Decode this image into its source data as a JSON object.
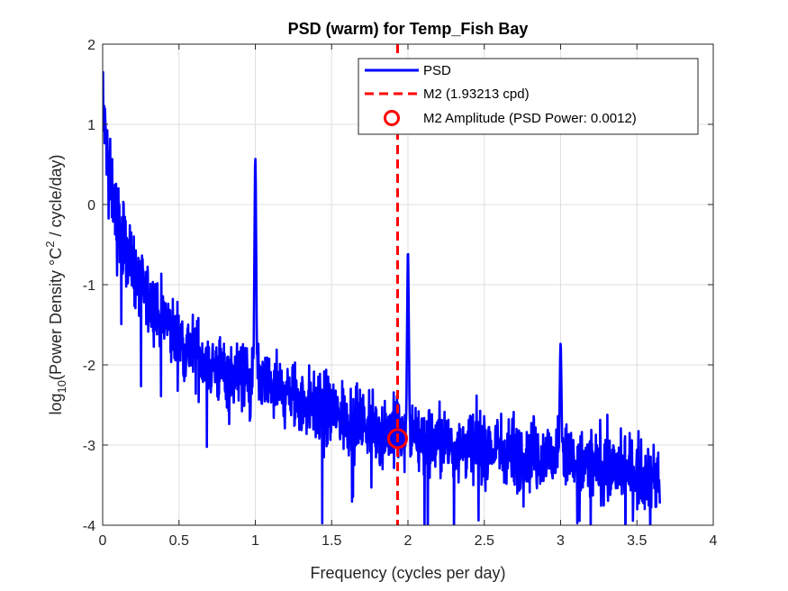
{
  "chart_data": {
    "type": "line",
    "title": "PSD (warm) for Temp_Fish Bay",
    "xlabel": "Frequency (cycles per day)",
    "ylabel": {
      "prefix": "log",
      "sub": "10",
      "mid": "(Power Density °C",
      "sup": "2",
      "suffix": " / cycle/day)"
    },
    "xlim": [
      0,
      4
    ],
    "ylim": [
      -4,
      2
    ],
    "xticks": [
      0,
      0.5,
      1,
      1.5,
      2,
      2.5,
      3,
      3.5,
      4
    ],
    "yticks": [
      -4,
      -3,
      -2,
      -1,
      0,
      1,
      2
    ],
    "xtick_labels": [
      "0",
      "0.5",
      "1",
      "1.5",
      "2",
      "2.5",
      "3",
      "3.5",
      "4"
    ],
    "ytick_labels": [
      "-4",
      "-3",
      "-2",
      "-1",
      "0",
      "1",
      "2"
    ],
    "grid": true,
    "legend_position": "top-right",
    "series": [
      {
        "name": "PSD",
        "style": "line",
        "color": "#0000ff",
        "x_range": [
          0,
          3.65
        ],
        "peaks": [
          {
            "x": 0.005,
            "y": 1.65
          },
          {
            "x": 1.0,
            "y": 0.58
          },
          {
            "x": 2.0,
            "y": -0.58
          },
          {
            "x": 3.0,
            "y": -1.73
          }
        ],
        "baseline": [
          {
            "x": 0.0,
            "y": 1.2
          },
          {
            "x": 0.05,
            "y": 0.3
          },
          {
            "x": 0.1,
            "y": -0.2
          },
          {
            "x": 0.2,
            "y": -0.8
          },
          {
            "x": 0.3,
            "y": -1.2
          },
          {
            "x": 0.5,
            "y": -1.7
          },
          {
            "x": 0.75,
            "y": -2.05
          },
          {
            "x": 1.0,
            "y": -2.2
          },
          {
            "x": 1.5,
            "y": -2.6
          },
          {
            "x": 1.9,
            "y": -2.85
          },
          {
            "x": 2.3,
            "y": -3.0
          },
          {
            "x": 2.8,
            "y": -3.1
          },
          {
            "x": 3.2,
            "y": -3.25
          },
          {
            "x": 3.65,
            "y": -3.4
          }
        ]
      },
      {
        "name": "M2 (1.93213 cpd)",
        "style": "dashed-vertical",
        "color": "#ff0000",
        "x": 1.93213
      },
      {
        "name": "M2 Amplitude (PSD Power: 0.0012)",
        "style": "circle-marker",
        "color": "#ff0000",
        "x": 1.93213,
        "y": -2.92
      }
    ]
  }
}
